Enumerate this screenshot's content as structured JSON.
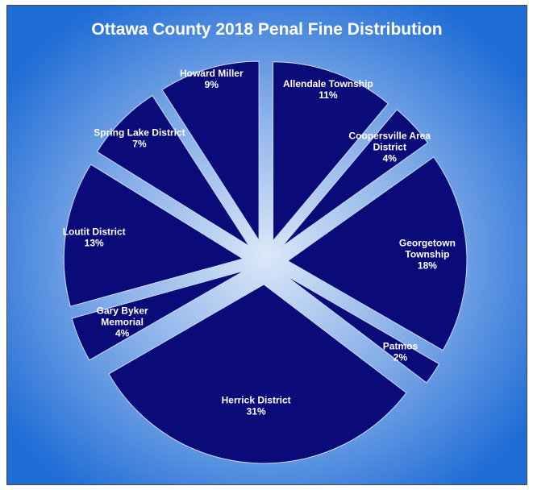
{
  "chart_data": {
    "type": "pie",
    "title": "Ottawa County 2018 Penal Fine Distribution",
    "exploded": true,
    "slices": [
      {
        "label": [
          "Allendale Township"
        ],
        "percent": "11%",
        "value": 11
      },
      {
        "label": [
          "Coopersville Area",
          "District"
        ],
        "percent": "4%",
        "value": 4
      },
      {
        "label": [
          "Georgetown",
          "Township"
        ],
        "percent": "18%",
        "value": 18
      },
      {
        "label": [
          "Patmos"
        ],
        "percent": "2%",
        "value": 2
      },
      {
        "label": [
          "Herrick District"
        ],
        "percent": "31%",
        "value": 31
      },
      {
        "label": [
          "Gary Byker",
          "Memorial"
        ],
        "percent": "4%",
        "value": 4
      },
      {
        "label": [
          "Loutit District"
        ],
        "percent": "13%",
        "value": 13
      },
      {
        "label": [
          "Spring Lake District"
        ],
        "percent": "7%",
        "value": 7
      },
      {
        "label": [
          "Howard Miller"
        ],
        "percent": "9%",
        "value": 9
      }
    ]
  },
  "colors": {
    "slice_fill": "#0a0a78",
    "slice_stroke": "#c8dcf5",
    "background_center": "#dbe8f8",
    "background_edge": "#1e6cd6",
    "text": "#ffffff"
  }
}
